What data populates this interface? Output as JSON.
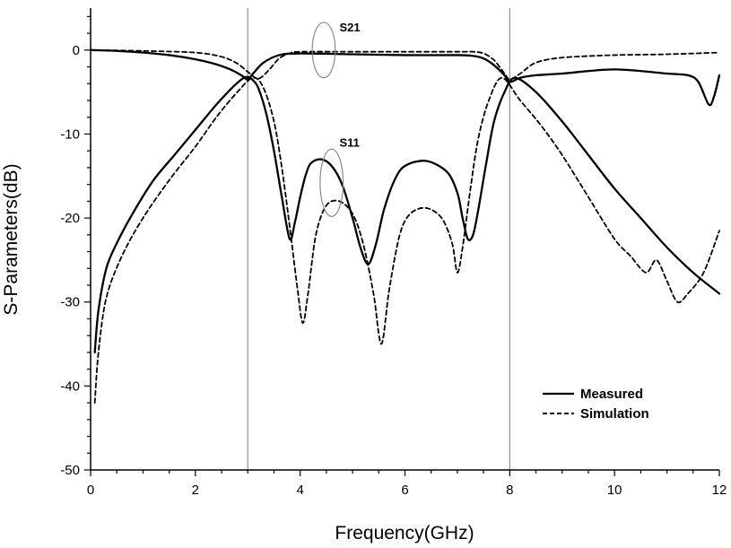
{
  "chart_data": {
    "type": "line",
    "xlabel": "Frequency(GHz)",
    "ylabel": "S-Parameters(dB)",
    "xlim": [
      0,
      12
    ],
    "ylim": [
      -50,
      5
    ],
    "xticks": [
      0,
      2,
      4,
      6,
      8,
      10,
      12
    ],
    "yticks": [
      0,
      -10,
      -20,
      -30,
      -40,
      -50
    ],
    "grid": false,
    "legend_position": "bottom-right",
    "reference_lines_x": [
      3,
      8
    ],
    "reference_line_color": "#9a9a9a",
    "series": [
      {
        "name": "Measured",
        "style": "solid",
        "color": "#000000",
        "label": "S21",
        "x": [
          0,
          0.5,
          1,
          1.5,
          2,
          2.4,
          2.7,
          2.9,
          3.0,
          3.1,
          3.3,
          3.6,
          4,
          5,
          6,
          7,
          7.3,
          7.5,
          7.7,
          7.9,
          8.0,
          8.2,
          8.5,
          9,
          10,
          11,
          11.4,
          11.6,
          11.8,
          11.9,
          12
        ],
        "y": [
          0,
          -0.1,
          -0.3,
          -0.6,
          -1.1,
          -1.7,
          -2.4,
          -3.1,
          -3.5,
          -2.8,
          -1.5,
          -0.6,
          -0.4,
          -0.5,
          -0.6,
          -0.6,
          -0.7,
          -1.0,
          -1.8,
          -3.0,
          -3.8,
          -3.3,
          -3.0,
          -2.8,
          -2.3,
          -2.8,
          -3.0,
          -3.8,
          -6.5,
          -5.5,
          -3.0
        ]
      },
      {
        "name": "Measured",
        "style": "solid",
        "color": "#000000",
        "label": "S11",
        "x": [
          0.08,
          0.15,
          0.3,
          0.5,
          0.8,
          1.2,
          1.6,
          2.0,
          2.4,
          2.7,
          2.9,
          3.0,
          3.1,
          3.2,
          3.35,
          3.5,
          3.65,
          3.8,
          3.9,
          4.0,
          4.1,
          4.2,
          4.4,
          4.6,
          4.8,
          5.0,
          5.15,
          5.3,
          5.45,
          5.6,
          5.8,
          6.0,
          6.4,
          6.8,
          7.0,
          7.1,
          7.2,
          7.3,
          7.4,
          7.55,
          7.7,
          7.9,
          8.1,
          8.5,
          9.0,
          9.5,
          10.0,
          10.5,
          11.0,
          11.5,
          12.0
        ],
        "y": [
          -36,
          -31,
          -26,
          -23,
          -19.5,
          -15.5,
          -12.5,
          -9.5,
          -6.5,
          -4.5,
          -3.4,
          -3.2,
          -3.6,
          -4.5,
          -7.5,
          -12.0,
          -17.5,
          -22.5,
          -20.5,
          -17.5,
          -15.0,
          -13.5,
          -13.0,
          -13.8,
          -16.0,
          -20.0,
          -23.5,
          -25.5,
          -23.0,
          -19.0,
          -15.5,
          -13.8,
          -13.2,
          -14.5,
          -17.0,
          -20.0,
          -22.5,
          -22.0,
          -19.0,
          -13.5,
          -8.5,
          -5.0,
          -3.3,
          -5.0,
          -8.5,
          -12.5,
          -16.5,
          -20.0,
          -23.5,
          -26.5,
          -29.0
        ]
      },
      {
        "name": "Simulation",
        "style": "dashed",
        "color": "#000000",
        "label": "S21",
        "x": [
          0,
          1,
          2,
          2.5,
          2.8,
          3.0,
          3.2,
          3.4,
          3.6,
          3.8,
          4.0,
          5,
          6,
          7,
          7.3,
          7.5,
          7.7,
          7.9,
          8.0,
          8.2,
          8.5,
          9,
          10,
          11,
          12
        ],
        "y": [
          0,
          -0.1,
          -0.3,
          -0.8,
          -1.6,
          -2.6,
          -3.4,
          -2.4,
          -1.0,
          -0.4,
          -0.2,
          -0.2,
          -0.2,
          -0.2,
          -0.2,
          -0.4,
          -1.2,
          -2.8,
          -3.5,
          -2.8,
          -1.5,
          -0.9,
          -0.6,
          -0.5,
          -0.3
        ]
      },
      {
        "name": "Simulation",
        "style": "dashed",
        "color": "#000000",
        "label": "S11",
        "x": [
          0.08,
          0.15,
          0.3,
          0.6,
          1.0,
          1.5,
          2.0,
          2.4,
          2.8,
          3.1,
          3.3,
          3.5,
          3.65,
          3.8,
          3.95,
          4.05,
          4.15,
          4.3,
          4.5,
          4.75,
          5.0,
          5.2,
          5.4,
          5.55,
          5.7,
          5.9,
          6.1,
          6.4,
          6.7,
          6.9,
          7.0,
          7.1,
          7.25,
          7.4,
          7.6,
          7.85,
          8.2,
          8.6,
          9.0,
          9.5,
          10.0,
          10.3,
          10.6,
          10.8,
          11.0,
          11.2,
          11.4,
          11.7,
          12.0
        ],
        "y": [
          -42,
          -36,
          -29.5,
          -24.5,
          -20,
          -15.5,
          -11.5,
          -8.0,
          -5.0,
          -3.3,
          -4.5,
          -8.5,
          -14.0,
          -21.0,
          -28.5,
          -32.5,
          -29.0,
          -22.0,
          -18.5,
          -18.0,
          -19.5,
          -23.0,
          -29.0,
          -35.0,
          -28.5,
          -22.0,
          -19.5,
          -18.8,
          -20.0,
          -23.0,
          -26.5,
          -23.5,
          -16.5,
          -10.5,
          -6.0,
          -3.3,
          -6.0,
          -9.0,
          -12.5,
          -17.5,
          -22.5,
          -24.5,
          -26.5,
          -25.0,
          -27.5,
          -30.0,
          -29.0,
          -26.5,
          -21.5
        ]
      }
    ],
    "annotations": [
      {
        "text": "S21",
        "ellipse_center": [
          4.45,
          0
        ],
        "ellipse_rx_data": 0.22,
        "ellipse_ry_data": 3.3,
        "label_at": [
          4.75,
          2.2
        ]
      },
      {
        "text": "S11",
        "ellipse_center": [
          4.6,
          -15.8
        ],
        "ellipse_rx_data": 0.22,
        "ellipse_ry_data": 4.0,
        "label_at": [
          4.75,
          -11.5
        ]
      }
    ],
    "legend": [
      {
        "label": "Measured",
        "style": "solid"
      },
      {
        "label": "Simulation",
        "style": "dashed"
      }
    ]
  }
}
